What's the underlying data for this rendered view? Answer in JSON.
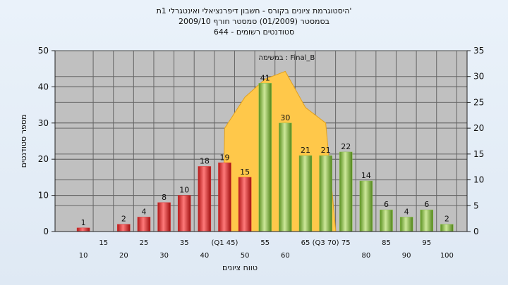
{
  "chart_data": {
    "type": "bar",
    "title_lines": [
      "'היסטוגרמת ציונים בקורס - חשבון דיפרנציאלי ואינטגרלי 1ת",
      "בסמסטר (01/2009) סמסטר חורף 2009/10",
      "סטודנטים רשומים - 644"
    ],
    "xlabel": "טווח ציונים",
    "ylabel": "מספר סטודנטים",
    "ylim": [
      0,
      50
    ],
    "y_ticks": [
      0,
      10,
      20,
      30,
      40,
      50
    ],
    "y2lim": [
      0,
      35
    ],
    "y2_ticks": [
      0,
      5,
      10,
      15,
      20,
      25,
      30,
      35
    ],
    "grid": true,
    "x_tick_labels": [
      {
        "x": 10,
        "row": 2,
        "text": "10"
      },
      {
        "x": 15,
        "row": 1,
        "text": "15"
      },
      {
        "x": 20,
        "row": 2,
        "text": "20"
      },
      {
        "x": 25,
        "row": 1,
        "text": "25"
      },
      {
        "x": 30,
        "row": 2,
        "text": "30"
      },
      {
        "x": 35,
        "row": 1,
        "text": "35"
      },
      {
        "x": 40,
        "row": 2,
        "text": "40"
      },
      {
        "x": 45,
        "row": 1,
        "text": "(Q1 45)"
      },
      {
        "x": 50,
        "row": 2,
        "text": "50"
      },
      {
        "x": 55,
        "row": 1,
        "text": "55"
      },
      {
        "x": 60,
        "row": 2,
        "text": "60"
      },
      {
        "x": 65,
        "row": 1,
        "text": "65"
      },
      {
        "x": 70,
        "row": 1,
        "text": "(Q3 70)"
      },
      {
        "x": 75,
        "row": 1,
        "text": "75"
      },
      {
        "x": 80,
        "row": 2,
        "text": "80"
      },
      {
        "x": 85,
        "row": 1,
        "text": "85"
      },
      {
        "x": 90,
        "row": 2,
        "text": "90"
      },
      {
        "x": 95,
        "row": 1,
        "text": "95"
      },
      {
        "x": 100,
        "row": 2,
        "text": "100"
      }
    ],
    "series": [
      {
        "color": "#e03030",
        "bars": [
          {
            "x": 10,
            "value": 1
          },
          {
            "x": 20,
            "value": 2
          },
          {
            "x": 25,
            "value": 4
          },
          {
            "x": 30,
            "value": 8
          },
          {
            "x": 35,
            "value": 10
          },
          {
            "x": 40,
            "value": 18
          },
          {
            "x": 45,
            "value": 19
          },
          {
            "x": 50,
            "value": 15
          }
        ]
      },
      {
        "color": "#8cc04a",
        "bars": [
          {
            "x": 55,
            "value": 41
          },
          {
            "x": 60,
            "value": 30
          },
          {
            "x": 65,
            "value": 21
          },
          {
            "x": 70,
            "value": 21
          },
          {
            "x": 75,
            "value": 22
          },
          {
            "x": 80,
            "value": 14
          },
          {
            "x": 85,
            "value": 6
          },
          {
            "x": 90,
            "value": 4
          },
          {
            "x": 95,
            "value": 6
          },
          {
            "x": 100,
            "value": 2
          }
        ]
      }
    ],
    "area": {
      "label": "Final_B : במשימה",
      "color": "#ffc84a",
      "points": [
        {
          "x": 44.5,
          "y2": 0
        },
        {
          "x": 45,
          "y2": 20
        },
        {
          "x": 50,
          "y2": 26
        },
        {
          "x": 55,
          "y2": 29.5
        },
        {
          "x": 60,
          "y2": 31
        },
        {
          "x": 65,
          "y2": 24
        },
        {
          "x": 70,
          "y2": 21
        },
        {
          "x": 72.5,
          "y2": 0
        }
      ]
    }
  }
}
